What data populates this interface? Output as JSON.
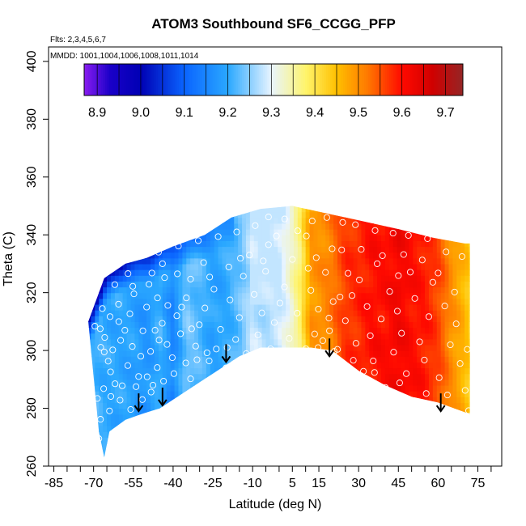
{
  "chart_data": {
    "type": "heatmap",
    "title": "ATOM3 Southbound SF6_CCGG_PFP",
    "flights_label": "Flts: 2,3,4,5,6,7",
    "mmdd_label": "MMDD: 1001,1004,1006,1008,1011,1014",
    "xlabel": "Latitude (deg N)",
    "ylabel": "Theta (C)",
    "xlim": [
      -87,
      84
    ],
    "ylim": [
      260,
      405
    ],
    "x_ticks": [
      -85,
      -70,
      -55,
      -40,
      -25,
      -10,
      5,
      15,
      30,
      45,
      60,
      75
    ],
    "x_minor_step": 5,
    "y_ticks": [
      260,
      280,
      300,
      320,
      340,
      360,
      380,
      400
    ],
    "colorbar": {
      "min": 8.87,
      "max": 9.74,
      "ticks": [
        8.9,
        9.0,
        9.1,
        9.2,
        9.3,
        9.4,
        9.5,
        9.6,
        9.7
      ],
      "stops": [
        {
          "v": 8.87,
          "c": "#8a1cf0"
        },
        {
          "v": 8.93,
          "c": "#1a00c8"
        },
        {
          "v": 9.0,
          "c": "#0000b4"
        },
        {
          "v": 9.1,
          "c": "#0a64ff"
        },
        {
          "v": 9.2,
          "c": "#2aa8ff"
        },
        {
          "v": 9.3,
          "c": "#e8f4ff"
        },
        {
          "v": 9.38,
          "c": "#fff46a"
        },
        {
          "v": 9.45,
          "c": "#ffc000"
        },
        {
          "v": 9.52,
          "c": "#ff7a00"
        },
        {
          "v": 9.6,
          "c": "#ff0a00"
        },
        {
          "v": 9.67,
          "c": "#d00000"
        },
        {
          "v": 9.74,
          "c": "#952525"
        }
      ]
    },
    "field": {
      "top_boundary": [
        [
          -72,
          310
        ],
        [
          -66,
          325
        ],
        [
          -58,
          330
        ],
        [
          -50,
          332
        ],
        [
          -40,
          336
        ],
        [
          -28,
          340
        ],
        [
          -18,
          346
        ],
        [
          -7,
          349
        ],
        [
          5,
          350
        ],
        [
          15,
          348
        ],
        [
          30,
          345
        ],
        [
          45,
          342
        ],
        [
          58,
          339
        ],
        [
          70,
          337
        ]
      ],
      "bottom_boundary": [
        [
          -72,
          310
        ],
        [
          -68,
          272
        ],
        [
          -66,
          263
        ],
        [
          -64,
          272
        ],
        [
          -58,
          276
        ],
        [
          -52,
          278
        ],
        [
          -45,
          280
        ],
        [
          -35,
          286
        ],
        [
          -25,
          292
        ],
        [
          -15,
          298
        ],
        [
          -7,
          301
        ],
        [
          5,
          301
        ],
        [
          12,
          301
        ],
        [
          20,
          300
        ],
        [
          30,
          293
        ],
        [
          40,
          288
        ],
        [
          50,
          284
        ],
        [
          60,
          282
        ],
        [
          72,
          278
        ],
        [
          72,
          337
        ]
      ],
      "latitude_values": [
        [
          -72,
          9.22
        ],
        [
          -65,
          9.2
        ],
        [
          -55,
          9.19
        ],
        [
          -50,
          9.17
        ],
        [
          -45,
          9.21
        ],
        [
          -40,
          9.15
        ],
        [
          -35,
          9.24
        ],
        [
          -30,
          9.22
        ],
        [
          -25,
          9.19
        ],
        [
          -20,
          9.2
        ],
        [
          -15,
          9.23
        ],
        [
          -10,
          9.28
        ],
        [
          -5,
          9.27
        ],
        [
          0,
          9.28
        ],
        [
          4,
          9.32
        ],
        [
          8,
          9.38
        ],
        [
          12,
          9.49
        ],
        [
          16,
          9.5
        ],
        [
          20,
          9.52
        ],
        [
          25,
          9.57
        ],
        [
          30,
          9.58
        ],
        [
          35,
          9.6
        ],
        [
          40,
          9.6
        ],
        [
          45,
          9.62
        ],
        [
          50,
          9.6
        ],
        [
          55,
          9.59
        ],
        [
          60,
          9.56
        ],
        [
          65,
          9.5
        ],
        [
          70,
          9.46
        ],
        [
          72,
          9.43
        ]
      ],
      "top_blue_latitude_band": [
        [
          -66,
          9.02
        ],
        [
          -58,
          9.04
        ],
        [
          -50,
          9.06
        ],
        [
          -40,
          9.1
        ],
        [
          -30,
          9.14
        ],
        [
          -20,
          9.17
        ]
      ]
    },
    "sample_points": [
      [
        -67.5,
        307.5
      ],
      [
        -66.0,
        299.5
      ],
      [
        -64.5,
        296.3
      ],
      [
        -63.6,
        292.6
      ],
      [
        -62.8,
        300.2
      ],
      [
        -61.9,
        288.5
      ],
      [
        -60.5,
        310.0
      ],
      [
        -59.8,
        303.5
      ],
      [
        -58.2,
        307.0
      ],
      [
        -57.1,
        294.8
      ],
      [
        -56.3,
        312.7
      ],
      [
        -55.4,
        301.4
      ],
      [
        -54.8,
        319.6
      ],
      [
        -53.0,
        291.0
      ],
      [
        -52.2,
        298.0
      ],
      [
        -51.4,
        306.8
      ],
      [
        -50.0,
        315.0
      ],
      [
        -49.1,
        322.9
      ],
      [
        -48.5,
        299.7
      ],
      [
        -47.6,
        288.0
      ],
      [
        -46.0,
        294.1
      ],
      [
        -45.3,
        303.6
      ],
      [
        -44.1,
        309.4
      ],
      [
        -43.2,
        325.2
      ],
      [
        -42.0,
        315.6
      ],
      [
        -40.3,
        297.5
      ],
      [
        -38.6,
        312.0
      ],
      [
        -37.2,
        305.8
      ],
      [
        -35.0,
        318.2
      ],
      [
        -33.4,
        290.2
      ],
      [
        -31.5,
        301.5
      ],
      [
        -30.1,
        308.9
      ],
      [
        -28.0,
        314.7
      ],
      [
        -26.4,
        296.4
      ],
      [
        -24.6,
        321.2
      ],
      [
        -22.1,
        307.3
      ],
      [
        -20.0,
        294.0
      ],
      [
        -18.5,
        317.5
      ],
      [
        -16.4,
        303.8
      ],
      [
        -15.0,
        311.4
      ],
      [
        -13.5,
        325.7
      ],
      [
        -12.4,
        298.9
      ],
      [
        -11.2,
        333.0
      ],
      [
        -9.4,
        319.4
      ],
      [
        -8.0,
        305.4
      ],
      [
        -6.5,
        313.0
      ],
      [
        -5.1,
        327.4
      ],
      [
        -3.2,
        300.6
      ],
      [
        -1.8,
        309.7
      ],
      [
        0.3,
        316.4
      ],
      [
        2.0,
        322.0
      ],
      [
        3.8,
        304.2
      ],
      [
        5.0,
        331.5
      ],
      [
        6.8,
        312.9
      ],
      [
        8.5,
        298.6
      ],
      [
        10.3,
        339.6
      ],
      [
        12.0,
        320.8
      ],
      [
        13.4,
        305.7
      ],
      [
        14.8,
        314.3
      ],
      [
        16.1,
        297.8
      ],
      [
        17.5,
        327.0
      ],
      [
        19.0,
        306.8
      ],
      [
        20.4,
        316.9
      ],
      [
        22.0,
        300.4
      ],
      [
        23.6,
        334.8
      ],
      [
        25.0,
        310.3
      ],
      [
        26.3,
        289.6
      ],
      [
        27.5,
        319.0
      ],
      [
        29.0,
        302.5
      ],
      [
        30.3,
        324.4
      ],
      [
        31.8,
        292.8
      ],
      [
        33.2,
        315.2
      ],
      [
        34.4,
        305.1
      ],
      [
        35.5,
        296.4
      ],
      [
        37.0,
        330.0
      ],
      [
        38.5,
        310.9
      ],
      [
        40.1,
        287.2
      ],
      [
        41.7,
        320.4
      ],
      [
        43.2,
        299.4
      ],
      [
        44.6,
        313.6
      ],
      [
        46.2,
        306.0
      ],
      [
        48.0,
        292.0
      ],
      [
        49.5,
        327.1
      ],
      [
        51.2,
        318.0
      ],
      [
        53.0,
        303.0
      ],
      [
        54.8,
        296.7
      ],
      [
        56.5,
        311.7
      ],
      [
        58.0,
        323.6
      ],
      [
        60.4,
        290.6
      ],
      [
        62.5,
        315.4
      ],
      [
        64.6,
        302.0
      ],
      [
        66.8,
        309.2
      ],
      [
        68.3,
        295.5
      ],
      [
        70.2,
        286.2
      ],
      [
        -68.6,
        283.4
      ],
      [
        -68.0,
        269.5
      ],
      [
        -67.4,
        276.2
      ],
      [
        -66.2,
        286.8
      ],
      [
        -64.0,
        279.1
      ],
      [
        -60.0,
        282.8
      ],
      [
        -56.0,
        279.6
      ],
      [
        -51.6,
        283.0
      ],
      [
        -48.3,
        285.6
      ],
      [
        -43.6,
        289.4
      ],
      [
        -39.7,
        292.0
      ],
      [
        -35.2,
        295.7
      ],
      [
        -31.0,
        296.8
      ],
      [
        -27.2,
        299.2
      ],
      [
        -23.7,
        300.5
      ],
      [
        -19.6,
        301.0
      ],
      [
        -4.0,
        346.2
      ],
      [
        2.1,
        345.5
      ],
      [
        18.0,
        346.0
      ],
      [
        24.0,
        344.3
      ],
      [
        28.8,
        343.5
      ],
      [
        36.2,
        341.5
      ],
      [
        43.0,
        340.6
      ],
      [
        48.8,
        339.8
      ],
      [
        56.0,
        338.7
      ],
      [
        -52.0,
        333.6
      ],
      [
        -45.5,
        334.0
      ],
      [
        -38.0,
        336.1
      ],
      [
        -30.5,
        338.0
      ],
      [
        -23.0,
        339.4
      ],
      [
        -16.0,
        341.0
      ],
      [
        -9.0,
        343.2
      ],
      [
        -4.0,
        336.6
      ],
      [
        7.0,
        341.4
      ],
      [
        12.5,
        344.8
      ],
      [
        20.0,
        335.2
      ],
      [
        31.0,
        335.0
      ],
      [
        39.0,
        332.8
      ],
      [
        47.0,
        333.2
      ],
      [
        54.0,
        331.3
      ],
      [
        63.0,
        334.1
      ],
      [
        69.0,
        332.5
      ],
      [
        -62.0,
        322.8
      ],
      [
        -57.0,
        326.6
      ],
      [
        -44.0,
        330.0
      ],
      [
        -28.5,
        330.4
      ],
      [
        -19.0,
        328.9
      ],
      [
        11.0,
        328.4
      ],
      [
        26.0,
        326.7
      ],
      [
        45.0,
        325.9
      ],
      [
        60.0,
        326.8
      ],
      [
        66.2,
        320.2
      ],
      [
        71.0,
        300.4
      ],
      [
        71.5,
        279.2
      ],
      [
        63.5,
        284.6
      ],
      [
        55.5,
        285.1
      ],
      [
        45.5,
        288.8
      ],
      [
        36.0,
        292.4
      ],
      [
        28.0,
        296.6
      ],
      [
        20.8,
        299.7
      ],
      [
        14.7,
        301.0
      ],
      [
        10.1,
        300.6
      ],
      [
        16.5,
        303.4
      ],
      [
        18.8,
        311.2
      ],
      [
        23.0,
        318.5
      ],
      [
        14.0,
        332.1
      ],
      [
        -1.0,
        339.6
      ],
      [
        -6.0,
        331.0
      ],
      [
        -14.6,
        331.9
      ],
      [
        -26.2,
        325.4
      ],
      [
        -33.4,
        324.7
      ],
      [
        -38.4,
        326.5
      ],
      [
        -48.0,
        326.8
      ],
      [
        -55.2,
        322.2
      ],
      [
        -60.6,
        316.0
      ],
      [
        -63.8,
        311.7
      ],
      [
        -65.8,
        304.5
      ],
      [
        -67.3,
        301.1
      ],
      [
        -69.5,
        308.4
      ],
      [
        -66.7,
        314.5
      ],
      [
        -63.5,
        284.1
      ],
      [
        -59.2,
        287.8
      ],
      [
        -54.0,
        287.5
      ],
      [
        -49.8,
        290.9
      ],
      [
        -46.8,
        307.0
      ],
      [
        -45.9,
        318.2
      ],
      [
        -42.3,
        302.1
      ],
      [
        -36.8,
        315.0
      ],
      [
        -33.0,
        307.5
      ]
    ],
    "arrows_at_latitude": [
      -53,
      -44,
      -20,
      19,
      61
    ],
    "arrow_theta": [
      279,
      281,
      296,
      298,
      279
    ]
  }
}
